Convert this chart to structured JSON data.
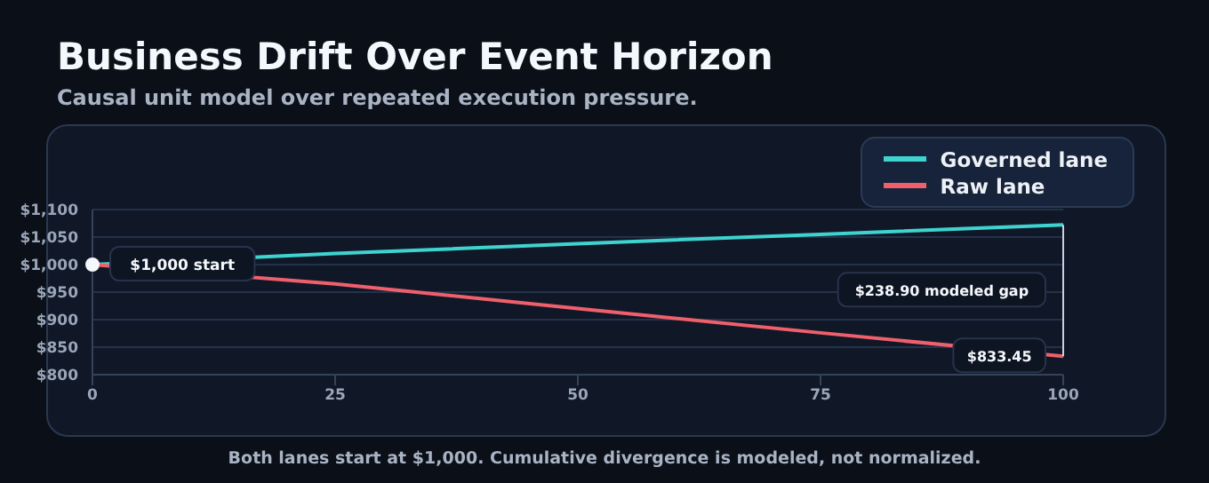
{
  "chart_data": {
    "type": "line",
    "title": "Business Drift Over Event Horizon",
    "subtitle": "Causal unit model over repeated execution pressure.",
    "x": [
      0,
      25,
      50,
      75,
      100
    ],
    "series": [
      {
        "name": "Governed lane",
        "color": "#3fd3cf",
        "values": [
          1000,
          1020,
          1038,
          1055,
          1072.35
        ]
      },
      {
        "name": "Raw lane",
        "color": "#ef5f6c",
        "values": [
          1000,
          965,
          920,
          876,
          833.45
        ]
      }
    ],
    "xlim": [
      0,
      100
    ],
    "xticks": [
      0,
      25,
      50,
      75,
      100
    ],
    "ylim": [
      800,
      1100
    ],
    "yticks": [
      {
        "value": 800,
        "label": "$800"
      },
      {
        "value": 850,
        "label": "$850"
      },
      {
        "value": 900,
        "label": "$900"
      },
      {
        "value": 950,
        "label": "$950"
      },
      {
        "value": 1000,
        "label": "$1,000"
      },
      {
        "value": 1050,
        "label": "$1,050"
      },
      {
        "value": 1100,
        "label": "$1,100"
      }
    ],
    "grid": "y",
    "legend": "top right",
    "marker": "none",
    "line_style": "solid",
    "annotations": [
      {
        "text": "$1,000 start",
        "x": 0,
        "y": 1000
      },
      "$238.90 modeled gap",
      {
        "text": "$833.45",
        "x": 100,
        "y": 833.45
      },
      "Both lanes start at $1,000. Cumulative divergence is modeled, not normalized."
    ]
  }
}
